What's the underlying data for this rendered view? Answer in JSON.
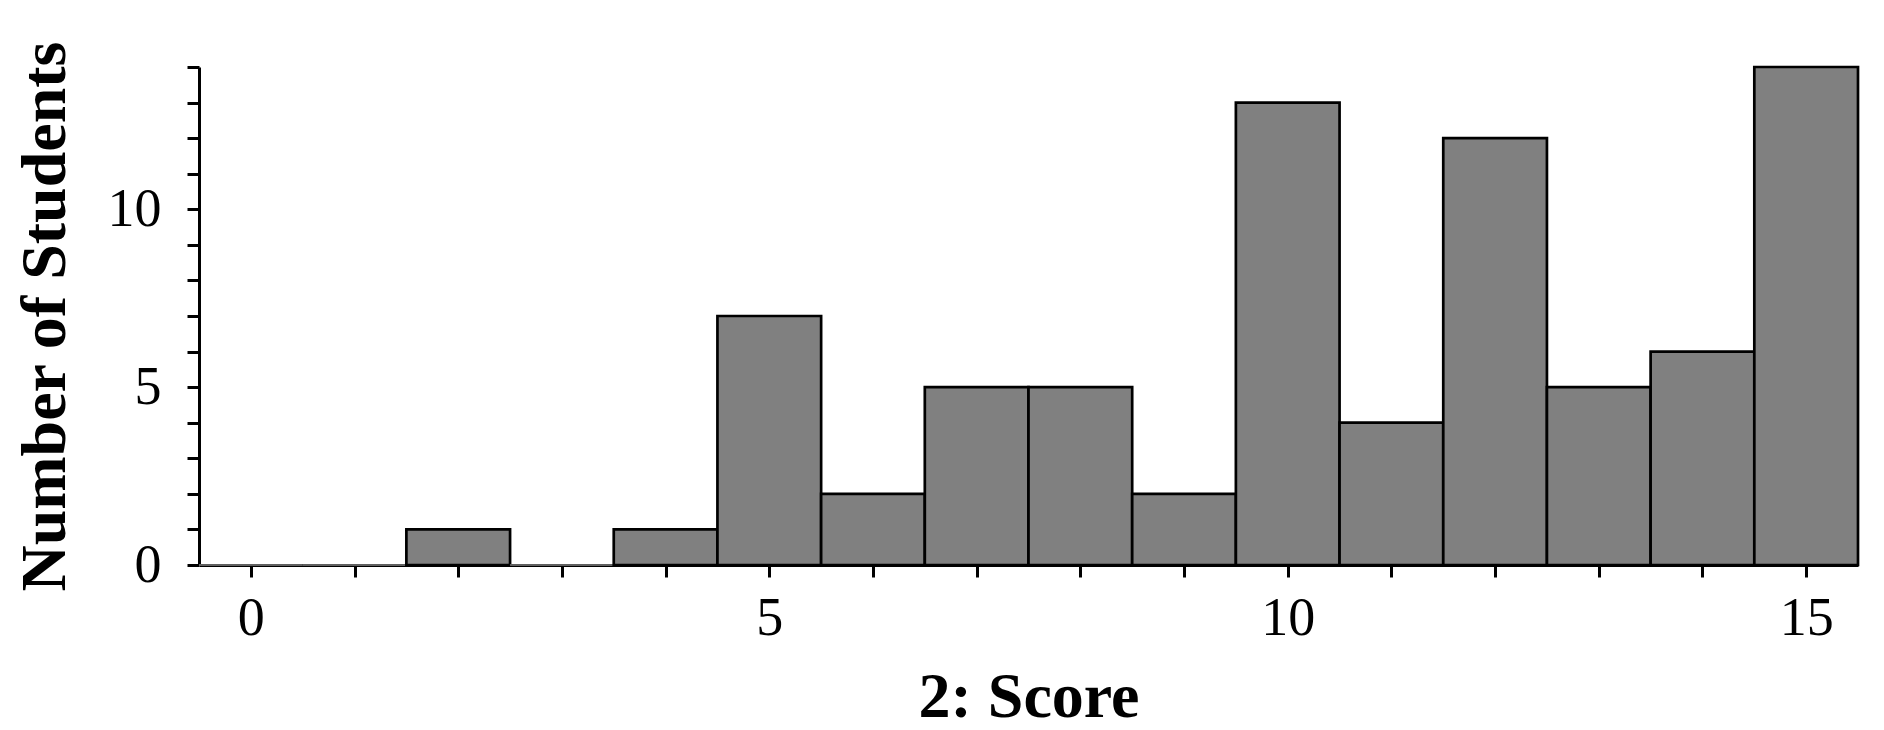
{
  "chart_data": {
    "type": "histogram",
    "xlabel": "2: Score",
    "ylabel": "Number of Students",
    "bins": [
      -0.5,
      0.5,
      1.5,
      2.5,
      3.5,
      4.5,
      5.5,
      6.5,
      7.5,
      8.5,
      9.5,
      10.5,
      11.5,
      12.5,
      13.5,
      14.5,
      15.5
    ],
    "values": [
      0,
      0,
      1,
      0,
      1,
      7,
      2,
      5,
      5,
      2,
      13,
      4,
      12,
      5,
      6,
      14
    ],
    "color": "#808080",
    "xlim": [
      -0.5,
      15.5
    ],
    "ylim": [
      0,
      14
    ],
    "xticks": [
      0,
      {
        "value": 1,
        "label": null
      },
      {
        "value": 2,
        "label": null
      },
      {
        "value": 3,
        "label": null
      },
      {
        "value": 4,
        "label": null
      },
      5,
      {
        "value": 6,
        "label": null
      },
      {
        "value": 7,
        "label": null
      },
      {
        "value": 8,
        "label": null
      },
      {
        "value": 9,
        "label": null
      },
      10,
      {
        "value": 11,
        "label": null
      },
      {
        "value": 12,
        "label": null
      },
      {
        "value": 13,
        "label": null
      },
      {
        "value": 14,
        "label": null
      },
      15
    ],
    "yticks": [
      0,
      {
        "value": 1,
        "label": null
      },
      {
        "value": 2,
        "label": null
      },
      {
        "value": 3,
        "label": null
      },
      {
        "value": 4,
        "label": null
      },
      5,
      {
        "value": 6,
        "label": null
      },
      {
        "value": 7,
        "label": null
      },
      {
        "value": 8,
        "label": null
      },
      {
        "value": 9,
        "label": null
      },
      10,
      {
        "value": 11,
        "label": null
      },
      {
        "value": 12,
        "label": null
      },
      {
        "value": 13,
        "label": null
      },
      {
        "value": 14,
        "label": null
      }
    ]
  }
}
